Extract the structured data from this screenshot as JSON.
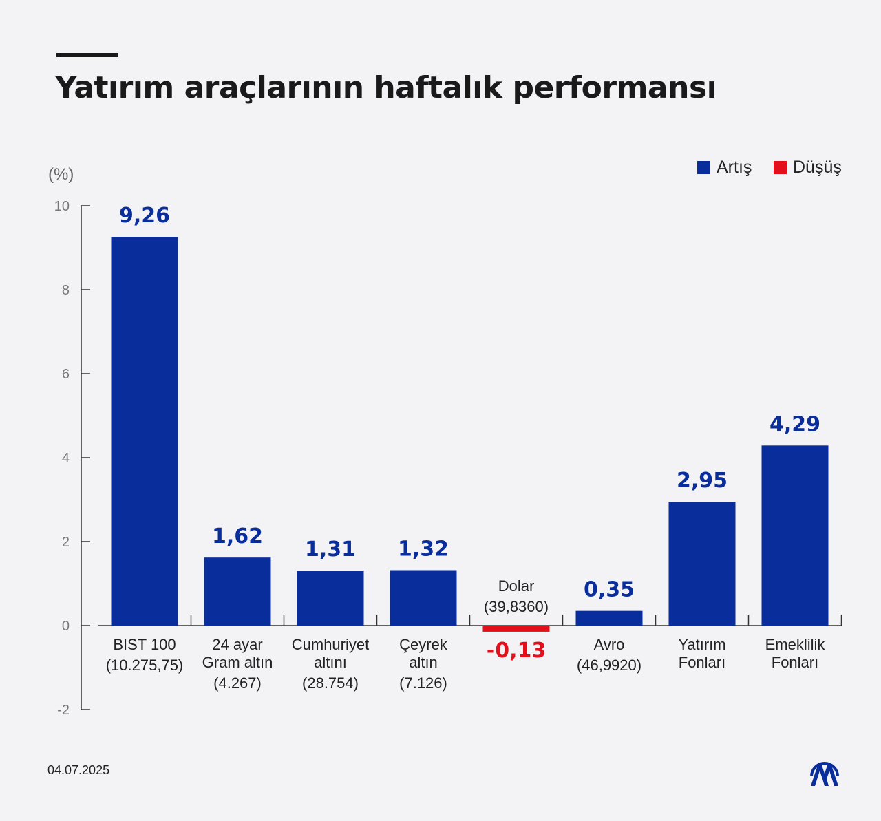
{
  "title": "Yatırım araçlarının haftalık performansı",
  "date": "04.07.2025",
  "logo_text": "AA",
  "colors": {
    "increase": "#0a2d9c",
    "decrease": "#e3101c"
  },
  "chart_data": {
    "type": "bar",
    "title": "Yatırım araçlarının haftalık performansı",
    "ylabel": "(%)",
    "ylim": [
      -2,
      10
    ],
    "yticks": [
      "-2",
      "0",
      "2",
      "4",
      "6",
      "8",
      "10"
    ],
    "grid": false,
    "legend_position": "top-right",
    "legend": [
      {
        "label": "Artış",
        "color": "#0a2d9c"
      },
      {
        "label": "Düşüş",
        "color": "#e3101c"
      }
    ],
    "categories": [
      [
        "BIST 100",
        "(10.275,75)"
      ],
      [
        "24 ayar",
        "Gram altın",
        "(4.267)"
      ],
      [
        "Cumhuriyet",
        "altını",
        "(28.754)"
      ],
      [
        "Çeyrek",
        "altın",
        "(7.126)"
      ],
      [
        "Dolar",
        "(39,8360)"
      ],
      [
        "Avro",
        "(46,9920)"
      ],
      [
        "Yatırım",
        "Fonları"
      ],
      [
        "Emeklilik",
        "Fonları"
      ]
    ],
    "values": [
      9.26,
      1.62,
      1.31,
      1.32,
      -0.13,
      0.35,
      2.95,
      4.29
    ],
    "value_labels": [
      "9,26",
      "1,62",
      "1,31",
      "1,32",
      "-0,13",
      "0,35",
      "2,95",
      "4,29"
    ]
  }
}
